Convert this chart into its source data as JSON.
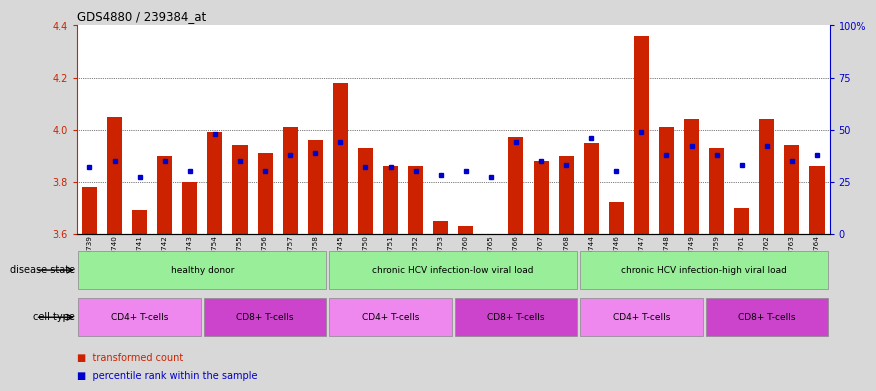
{
  "title": "GDS4880 / 239384_at",
  "samples": [
    "GSM1210739",
    "GSM1210740",
    "GSM1210741",
    "GSM1210742",
    "GSM1210743",
    "GSM1210754",
    "GSM1210755",
    "GSM1210756",
    "GSM1210757",
    "GSM1210758",
    "GSM1210745",
    "GSM1210750",
    "GSM1210751",
    "GSM1210752",
    "GSM1210753",
    "GSM1210760",
    "GSM1210765",
    "GSM1210766",
    "GSM1210767",
    "GSM1210768",
    "GSM1210744",
    "GSM1210746",
    "GSM1210747",
    "GSM1210748",
    "GSM1210749",
    "GSM1210759",
    "GSM1210761",
    "GSM1210762",
    "GSM1210763",
    "GSM1210764"
  ],
  "bar_values": [
    3.78,
    4.05,
    3.69,
    3.9,
    3.8,
    3.99,
    3.94,
    3.91,
    4.01,
    3.96,
    4.18,
    3.93,
    3.86,
    3.86,
    3.65,
    3.63,
    3.57,
    3.97,
    3.88,
    3.9,
    3.95,
    3.72,
    4.36,
    4.01,
    4.04,
    3.93,
    3.7,
    4.04,
    3.94,
    3.86
  ],
  "percentile_values": [
    32,
    35,
    27,
    35,
    30,
    48,
    35,
    30,
    38,
    39,
    44,
    32,
    32,
    30,
    28,
    30,
    27,
    44,
    35,
    33,
    46,
    30,
    49,
    38,
    42,
    38,
    33,
    42,
    35,
    38
  ],
  "bar_color": "#cc2200",
  "dot_color": "#0000cc",
  "ymin": 3.6,
  "ymax": 4.4,
  "y2min": 0,
  "y2max": 100,
  "yticks": [
    3.6,
    3.8,
    4.0,
    4.2,
    4.4
  ],
  "y2ticks": [
    0,
    25,
    50,
    75,
    100
  ],
  "y2ticklabels": [
    "0",
    "25",
    "50",
    "75",
    "100%"
  ],
  "background_color": "#d8d8d8",
  "plot_bg_color": "#ffffff",
  "disease_label": "disease state",
  "cell_label": "cell type",
  "ds_groups": [
    {
      "label": "healthy donor",
      "start": 0,
      "end": 10,
      "color": "#99ee99"
    },
    {
      "label": "chronic HCV infection-low viral load",
      "start": 10,
      "end": 20,
      "color": "#99ee99"
    },
    {
      "label": "chronic HCV infection-high viral load",
      "start": 20,
      "end": 30,
      "color": "#99ee99"
    }
  ],
  "ct_groups": [
    {
      "label": "CD4+ T-cells",
      "start": 0,
      "end": 5,
      "color": "#ee88ee"
    },
    {
      "label": "CD8+ T-cells",
      "start": 5,
      "end": 10,
      "color": "#cc44cc"
    },
    {
      "label": "CD4+ T-cells",
      "start": 10,
      "end": 15,
      "color": "#ee88ee"
    },
    {
      "label": "CD8+ T-cells",
      "start": 15,
      "end": 20,
      "color": "#cc44cc"
    },
    {
      "label": "CD4+ T-cells",
      "start": 20,
      "end": 25,
      "color": "#ee88ee"
    },
    {
      "label": "CD8+ T-cells",
      "start": 25,
      "end": 30,
      "color": "#cc44cc"
    }
  ]
}
